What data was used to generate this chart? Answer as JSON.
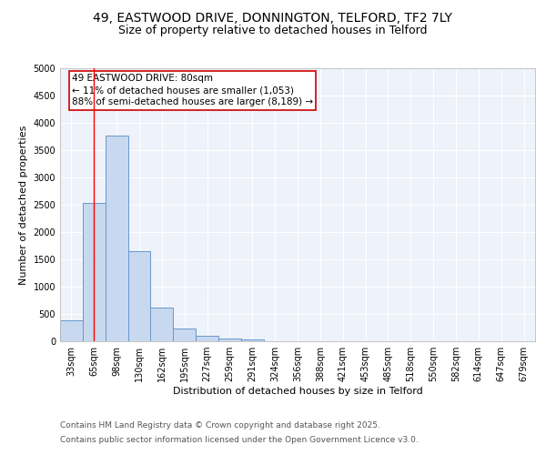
{
  "title_line1": "49, EASTWOOD DRIVE, DONNINGTON, TELFORD, TF2 7LY",
  "title_line2": "Size of property relative to detached houses in Telford",
  "xlabel": "Distribution of detached houses by size in Telford",
  "ylabel": "Number of detached properties",
  "categories": [
    "33sqm",
    "65sqm",
    "98sqm",
    "130sqm",
    "162sqm",
    "195sqm",
    "227sqm",
    "259sqm",
    "291sqm",
    "324sqm",
    "356sqm",
    "388sqm",
    "421sqm",
    "453sqm",
    "485sqm",
    "518sqm",
    "550sqm",
    "582sqm",
    "614sqm",
    "647sqm",
    "679sqm"
  ],
  "values": [
    380,
    2540,
    3760,
    1650,
    620,
    235,
    105,
    45,
    40,
    0,
    0,
    0,
    0,
    0,
    0,
    0,
    0,
    0,
    0,
    0,
    0
  ],
  "bar_color": "#c8d8ee",
  "bar_edgecolor": "#6699cc",
  "red_line_x": 1.0,
  "annotation_title": "49 EASTWOOD DRIVE: 80sqm",
  "annotation_line1": "← 11% of detached houses are smaller (1,053)",
  "annotation_line2": "88% of semi-detached houses are larger (8,189) →",
  "annotation_box_color": "#ffffff",
  "annotation_box_edgecolor": "#cc0000",
  "ylim": [
    0,
    5000
  ],
  "yticks": [
    0,
    500,
    1000,
    1500,
    2000,
    2500,
    3000,
    3500,
    4000,
    4500,
    5000
  ],
  "background_color": "#eef2fa",
  "grid_color": "#ffffff",
  "footer_line1": "Contains HM Land Registry data © Crown copyright and database right 2025.",
  "footer_line2": "Contains public sector information licensed under the Open Government Licence v3.0.",
  "title_fontsize": 10,
  "subtitle_fontsize": 9,
  "axis_label_fontsize": 8,
  "tick_fontsize": 7,
  "annotation_fontsize": 7.5,
  "footer_fontsize": 6.5
}
